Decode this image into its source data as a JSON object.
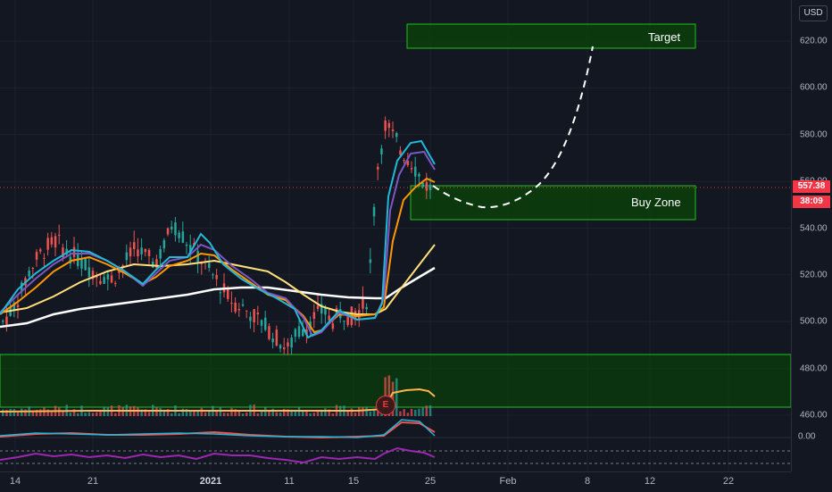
{
  "symbol": {
    "currency": "USD"
  },
  "price_axis": {
    "labels": [
      "620.00",
      "600.00",
      "580.00",
      "560.00",
      "540.00",
      "520.00",
      "500.00",
      "480.00",
      "460.00"
    ],
    "values": [
      620,
      600,
      580,
      560,
      540,
      520,
      500,
      480,
      460
    ],
    "current_price": "557.38",
    "countdown": "38:09",
    "oscillator_zero": "0.00"
  },
  "time_axis": {
    "labels": [
      "14",
      "21",
      "2021",
      "11",
      "15",
      "25",
      "Feb",
      "8",
      "12",
      "22"
    ]
  },
  "annotations": {
    "target_label": "Target",
    "buy_zone_label": "Buy Zone",
    "earnings_marker": "E"
  },
  "colors": {
    "background": "#131722",
    "up": "#26a69a",
    "down": "#ef5350",
    "zone_fill": "#0b3d0b",
    "zone_border": "#1fbf1f",
    "ma_cyan": "#22b8d8",
    "ma_purple": "#7e57c2",
    "ma_orange": "#ff9800",
    "ma_yellow": "#ffe07a",
    "ma_white": "#ffffff",
    "oscillator": "#9c27b0"
  },
  "chart_data": {
    "type": "candlestick",
    "price_range": [
      455,
      628
    ],
    "grid": true,
    "candles_close_approx": [
      500,
      505,
      512,
      522,
      528,
      532,
      535,
      530,
      528,
      525,
      522,
      520,
      518,
      521,
      527,
      532,
      528,
      525,
      531,
      542,
      538,
      532,
      528,
      522,
      518,
      512,
      508,
      506,
      503,
      500,
      496,
      492,
      488,
      495,
      498,
      502,
      505,
      500,
      504,
      502,
      505,
      510,
      565,
      585,
      578,
      572,
      568,
      560,
      557.38
    ],
    "buy_zone": {
      "price_low": 544,
      "price_high": 558
    },
    "target_zone": {
      "price_low": 617,
      "price_high": 627
    },
    "volume_zone": {
      "price_low": 463,
      "price_high": 485
    },
    "current_price": 557.38
  }
}
